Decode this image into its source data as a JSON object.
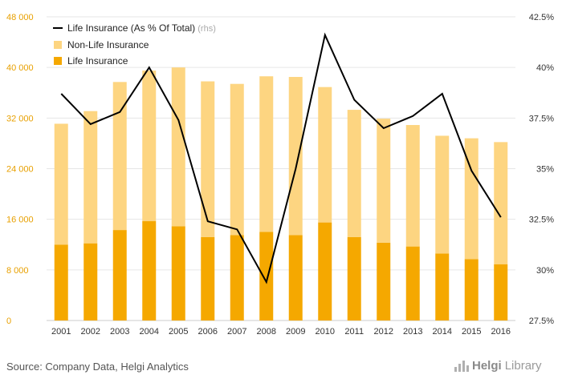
{
  "chart_data": {
    "type": "bar",
    "stacked": true,
    "categories": [
      "2001",
      "2002",
      "2003",
      "2004",
      "2005",
      "2006",
      "2007",
      "2008",
      "2009",
      "2010",
      "2011",
      "2012",
      "2013",
      "2014",
      "2015",
      "2016"
    ],
    "series": [
      {
        "name": "Life Insurance",
        "axis": "left",
        "color": "#f5a800",
        "values": [
          12000,
          12200,
          14300,
          15700,
          14900,
          13200,
          13500,
          14000,
          13500,
          15500,
          13200,
          12300,
          11700,
          10600,
          9700,
          8900
        ]
      },
      {
        "name": "Non-Life Insurance",
        "axis": "left",
        "color": "#fdd581",
        "values": [
          19100,
          20900,
          23400,
          23800,
          25100,
          24600,
          23900,
          24600,
          25000,
          21400,
          20100,
          19600,
          19200,
          18600,
          19100,
          19300
        ]
      },
      {
        "name": "Life Insurance (As % Of Total)",
        "axis": "right",
        "type": "line",
        "color": "#000000",
        "values": [
          38.7,
          37.2,
          37.8,
          40.0,
          37.4,
          32.4,
          32.0,
          29.4,
          35.0,
          41.6,
          38.4,
          37.0,
          37.6,
          38.7,
          34.9,
          32.6
        ]
      }
    ],
    "legend": [
      {
        "label": "Life Insurance (As % Of Total)",
        "suffix": "(rhs)",
        "kind": "line"
      },
      {
        "label": "Non-Life Insurance",
        "suffix": "",
        "kind": "bar-light"
      },
      {
        "label": "Life Insurance",
        "suffix": "",
        "kind": "bar-dark"
      }
    ],
    "left_axis": {
      "ticks": [
        0,
        8000,
        16000,
        24000,
        32000,
        40000,
        48000
      ],
      "labels": [
        "0",
        "8 000",
        "16 000",
        "24 000",
        "32 000",
        "40 000",
        "48 000"
      ],
      "ylim": [
        0,
        48000
      ]
    },
    "right_axis": {
      "ticks": [
        27.5,
        30,
        32.5,
        35,
        37.5,
        40,
        42.5
      ],
      "labels": [
        "27.5%",
        "30%",
        "32.5%",
        "35%",
        "37.5%",
        "40%",
        "42.5%"
      ],
      "ylim": [
        27.5,
        42.5
      ]
    },
    "legend_position": "top-left",
    "grid": "horizontal"
  },
  "footer": {
    "source": "Source: Company Data, Helgi Analytics",
    "logo_prefix": "Helgi",
    "logo_suffix": "Library"
  },
  "colors": {
    "life": "#f5a800",
    "nonlife": "#fdd581",
    "line": "#000000",
    "left_axis_text": "#e8a000",
    "grid": "#e6e6e6"
  }
}
